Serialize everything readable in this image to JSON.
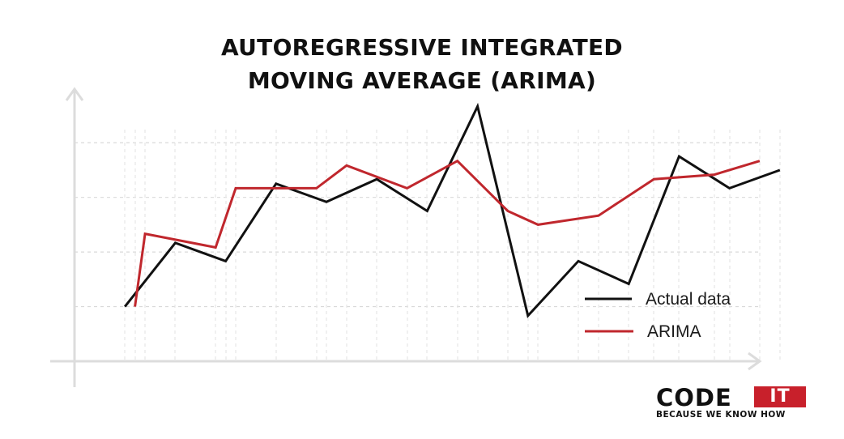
{
  "chart_data": {
    "type": "line",
    "title_lines": [
      "AUTOREGRESSIVE INTEGRATED",
      "MOVING AVERAGE (ARIMA)"
    ],
    "xlabel": "",
    "ylabel": "",
    "grid": "dashed horizontal and vertical",
    "legend_position": "bottom-right",
    "series": [
      {
        "name": "Actual data",
        "color": "#111111",
        "x": [
          1,
          2,
          3,
          4,
          5,
          6,
          7,
          8,
          9,
          10,
          11,
          12,
          13,
          14
        ],
        "y": [
          1.2,
          2.6,
          2.2,
          3.9,
          3.5,
          4.0,
          3.3,
          5.6,
          1.0,
          2.2,
          1.7,
          4.5,
          3.8,
          4.2
        ]
      },
      {
        "name": "ARIMA",
        "color": "#c0272d",
        "x": [
          1.2,
          1.4,
          2.8,
          3.2,
          4.8,
          5.4,
          6.6,
          7.6,
          8.6,
          9.2,
          10.4,
          11.5,
          12.7,
          13.6
        ],
        "y": [
          1.2,
          2.8,
          2.5,
          3.8,
          3.8,
          4.3,
          3.8,
          4.4,
          3.3,
          3.0,
          3.2,
          4.0,
          4.1,
          4.4
        ]
      }
    ],
    "xlim": [
      0,
      15
    ],
    "ylim": [
      0,
      6
    ]
  },
  "logo": {
    "word": "CODE",
    "badge": "IT",
    "tagline": "BECAUSE WE KNOW HOW"
  }
}
